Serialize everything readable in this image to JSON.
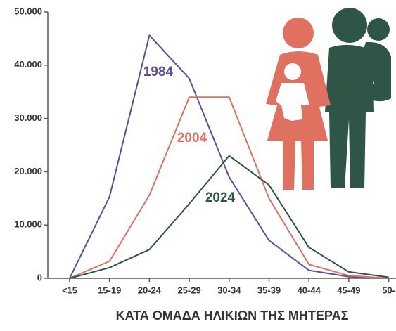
{
  "chart_data": {
    "type": "line",
    "x_axis_label": "ΚΑΤΑ ΟΜΑΔΑ ΗΛΙΚΙΩΝ ΤΗΣ ΜΗΤΕΡΑΣ",
    "categories": [
      "<15",
      "15-19",
      "20-24",
      "25-29",
      "30-34",
      "35-39",
      "40-44",
      "45-49",
      "50-"
    ],
    "series": [
      {
        "name": "1984",
        "color": "#5b4f9a",
        "values": [
          0,
          15300,
          45600,
          37500,
          19000,
          7100,
          1500,
          300,
          0
        ]
      },
      {
        "name": "2004",
        "color": "#e0705f",
        "values": [
          0,
          3200,
          15600,
          34000,
          34000,
          15000,
          2600,
          500,
          0
        ]
      },
      {
        "name": "2024",
        "color": "#2f5546",
        "values": [
          0,
          2000,
          5400,
          14000,
          23000,
          17500,
          5800,
          1200,
          200
        ]
      }
    ],
    "ylim": [
      0,
      50000
    ],
    "yticks": [
      {
        "value": 0,
        "label": "0"
      },
      {
        "value": 10000,
        "label": "10.000"
      },
      {
        "value": 20000,
        "label": "20.000"
      },
      {
        "value": 30000,
        "label": "30.000"
      },
      {
        "value": 40000,
        "label": "40.000"
      },
      {
        "value": 50000,
        "label": "50.000"
      }
    ]
  }
}
